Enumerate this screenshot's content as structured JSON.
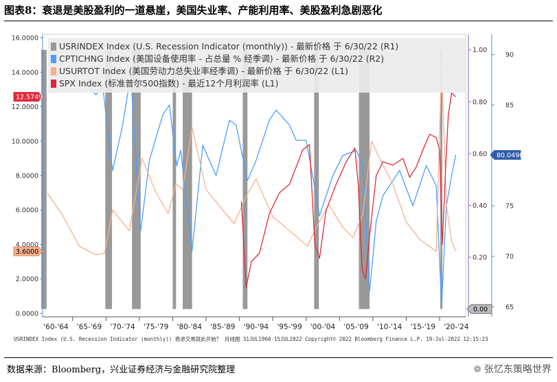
{
  "figure_title": "图表8：衰退是美股盈利的一道悬崖，美国失业率、产能利用率、美股盈利急剧恶化",
  "source": "数据来源：Bloomberg，兴业证券经济与金融研究院整理",
  "watermark": "张忆东策略世界",
  "footer_note": "USRINDEX Index (U.S. Recession Indicator (monthly)) 衰退交易就此开始？ 月线图 31JUL1960-15JUL2022  Copyright© 2022 Bloomberg Finance L.P.  19-Jul-2022 12:15:23",
  "colors": {
    "recession": "#999999",
    "capacity": "#4a9eff",
    "unemployment": "#f6b08e",
    "spx": "#e0283c",
    "axis_left": "#5b8bd0",
    "axis_right_outer": "#5b8bd0",
    "axis_right_inner": "#8a5fbf"
  },
  "chart_data": {
    "type": "line",
    "title": "",
    "x_tick_labels": [
      "'60-'64",
      "'65-'69",
      "'70-'74",
      "'75-'79",
      "'80-'84",
      "'85-'89",
      "'90-'94",
      "'95-'99",
      "'00-'04",
      "'05-'09",
      "'10-'14",
      "'15-'19",
      "'20-'24"
    ],
    "x_range": [
      1960.5,
      2023.9
    ],
    "left_axis": {
      "range": [
        -0.2,
        16.2
      ],
      "ticks": [
        "0.0000",
        "2.0000",
        "4.0000",
        "6.0000",
        "8.0000",
        "10.0000",
        "12.0000",
        "14.0000",
        "16.0000"
      ],
      "last_spx_label": "12.5749",
      "last_spx_value": 12.5749,
      "last_unemp_label": "3.6000",
      "last_unemp_value": 3.6
    },
    "inner_right_axis": {
      "range": [
        -0.03,
        1.06
      ],
      "ticks": [
        "0.20",
        "0.40",
        "0.60",
        "0.80",
        "1.00"
      ],
      "last_label": "0.00",
      "last_value": 0.0
    },
    "outer_right_axis": {
      "range": [
        64,
        92
      ],
      "ticks": [
        "65",
        "70",
        "75",
        "80",
        "85",
        "90"
      ],
      "last_label": "80.0490",
      "last_value": 80.049
    },
    "legend": {
      "placement": "top",
      "entries": [
        "USRINDEX Index (U.S. Recession Indicator (monthly)) - 最新价格 于 6/30/22 (R1)",
        "CPTICHNG Index (美国设备使用率 - 占总量 % 经季调) - 最新价格 于 6/30/22 (R2)",
        "USURTOT Index (美国劳动力总失业率经季调) - 最新价格 于 6/30/22 (L1)",
        "SPX Index (标准普尔500指数) - 最近12个月利润率 (L1)"
      ]
    },
    "recessions": [
      [
        1960.3,
        1961.1
      ],
      [
        1969.9,
        1970.9
      ],
      [
        1973.9,
        1975.2
      ],
      [
        1980.0,
        1980.5
      ],
      [
        1981.5,
        1982.9
      ],
      [
        1990.5,
        1991.2
      ],
      [
        2001.2,
        2001.9
      ],
      [
        2007.9,
        2009.5
      ],
      [
        2020.1,
        2020.4
      ]
    ],
    "series": [
      {
        "name": "CPTICHNG Index",
        "axis": "outer_right",
        "x": [
          1967.0,
          1968.5,
          1969.5,
          1970.5,
          1971.0,
          1972.5,
          1973.7,
          1975.2,
          1976.5,
          1978.5,
          1979.5,
          1980.6,
          1981.2,
          1982.9,
          1984.5,
          1986.5,
          1988.5,
          1989.5,
          1991.2,
          1992.5,
          1994.5,
          1995.5,
          1997.5,
          1998.5,
          2000.0,
          2001.5,
          2002.0,
          2004.0,
          2005.5,
          2007.5,
          2008.5,
          2009.5,
          2010.5,
          2011.5,
          2014.0,
          2016.0,
          2018.0,
          2019.5,
          2020.3,
          2021.0,
          2021.8,
          2022.4
        ],
        "values": [
          87.0,
          86.0,
          87.0,
          81.0,
          78.5,
          83.0,
          88.0,
          72.5,
          79.5,
          84.0,
          85.0,
          79.0,
          80.5,
          70.5,
          81.0,
          78.0,
          83.5,
          83.0,
          77.5,
          79.5,
          83.5,
          84.5,
          83.0,
          81.5,
          81.5,
          76.0,
          74.0,
          78.0,
          80.0,
          80.5,
          79.0,
          66.5,
          73.5,
          76.0,
          78.5,
          75.0,
          79.0,
          77.0,
          65.0,
          75.0,
          78.0,
          80.05
        ]
      },
      {
        "name": "USURTOT Index",
        "axis": "left",
        "x": [
          1961.2,
          1963.5,
          1966.0,
          1968.5,
          1969.8,
          1971.0,
          1973.5,
          1975.4,
          1977.5,
          1979.3,
          1980.5,
          1981.5,
          1982.9,
          1985.0,
          1987.5,
          1989.2,
          1991.0,
          1992.5,
          1995.0,
          1997.5,
          2000.2,
          2001.5,
          2003.4,
          2005.5,
          2007.0,
          2008.5,
          2009.8,
          2011.0,
          2013.0,
          2015.0,
          2017.0,
          2019.5,
          2020.3,
          2021.0,
          2021.8,
          2022.4
        ],
        "values": [
          7.0,
          5.7,
          3.9,
          3.4,
          3.5,
          6.0,
          4.8,
          9.0,
          7.0,
          5.8,
          7.5,
          7.2,
          10.8,
          7.2,
          6.0,
          5.2,
          6.8,
          7.8,
          5.6,
          4.8,
          3.9,
          5.0,
          6.3,
          5.0,
          4.4,
          5.8,
          10.0,
          9.0,
          7.5,
          5.3,
          4.3,
          3.6,
          14.7,
          6.3,
          4.2,
          3.6
        ]
      },
      {
        "name": "SPX Index",
        "axis": "left",
        "x": [
          1990.3,
          1991.0,
          1991.8,
          1993.0,
          1994.5,
          1996.0,
          1997.5,
          1998.5,
          1999.5,
          2000.5,
          2001.3,
          2002.0,
          2003.0,
          2004.5,
          2006.0,
          2007.3,
          2007.8,
          2008.4,
          2008.9,
          2009.5,
          2010.5,
          2011.5,
          2013.0,
          2014.5,
          2015.5,
          2016.5,
          2017.5,
          2018.5,
          2019.5,
          2020.0,
          2020.4,
          2020.9,
          2021.3,
          2021.8,
          2022.4
        ],
        "values": [
          6.5,
          1.5,
          3.0,
          3.5,
          5.8,
          7.0,
          7.5,
          8.5,
          9.5,
          9.8,
          4.0,
          3.2,
          6.0,
          7.5,
          8.8,
          9.6,
          7.5,
          2.5,
          2.0,
          4.5,
          8.0,
          8.8,
          8.6,
          9.0,
          7.9,
          8.5,
          9.5,
          10.4,
          10.2,
          9.5,
          4.0,
          8.5,
          11.5,
          12.8,
          12.57
        ]
      }
    ]
  }
}
